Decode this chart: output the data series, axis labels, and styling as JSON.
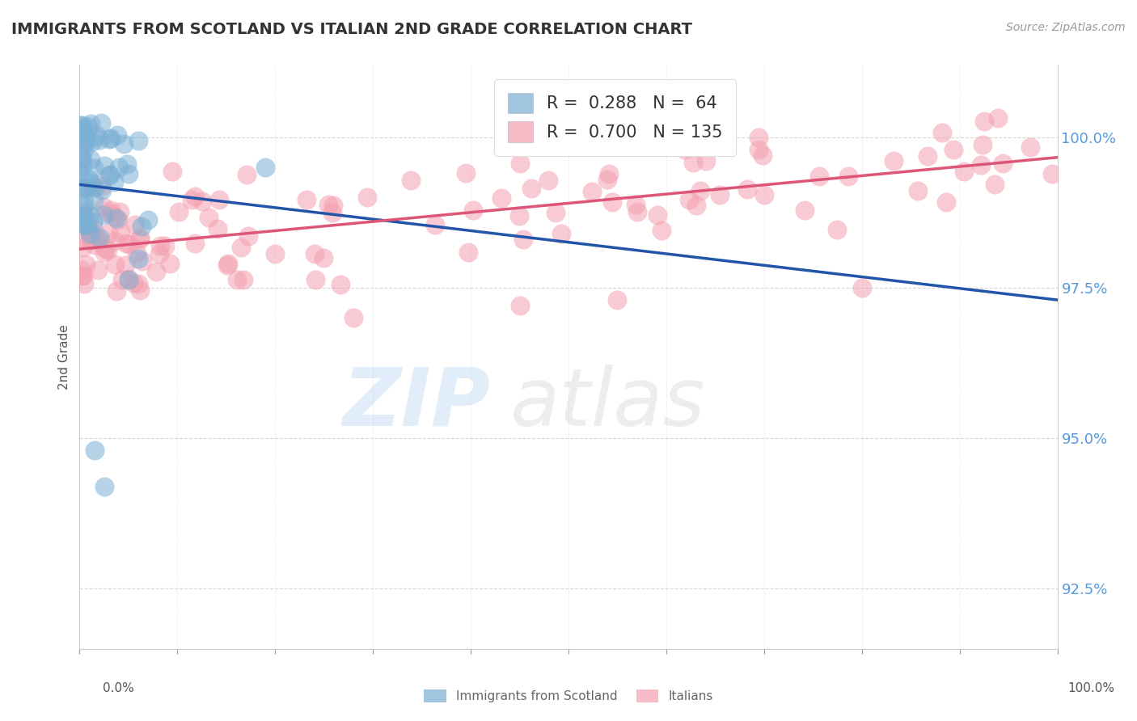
{
  "title": "IMMIGRANTS FROM SCOTLAND VS ITALIAN 2ND GRADE CORRELATION CHART",
  "source": "Source: ZipAtlas.com",
  "ylabel": "2nd Grade",
  "xmin": 0.0,
  "xmax": 100.0,
  "ymin": 91.5,
  "ymax": 101.2,
  "yticks": [
    92.5,
    95.0,
    97.5,
    100.0
  ],
  "ytick_labels": [
    "92.5%",
    "95.0%",
    "97.5%",
    "100.0%"
  ],
  "scotland_R": 0.288,
  "scotland_N": 64,
  "italian_R": 0.7,
  "italian_N": 135,
  "scotland_color": "#7BAFD4",
  "italian_color": "#F4A0B0",
  "scotland_line_color": "#2255AA",
  "italian_line_color": "#DD5577",
  "watermark_ZIP_color": "#AACCEE",
  "watermark_atlas_color": "#BBBBBB",
  "legend_label_scotland": "Immigrants from Scotland",
  "legend_label_italian": "Italians",
  "background_color": "#FFFFFF",
  "grid_color": "#CCCCCC"
}
